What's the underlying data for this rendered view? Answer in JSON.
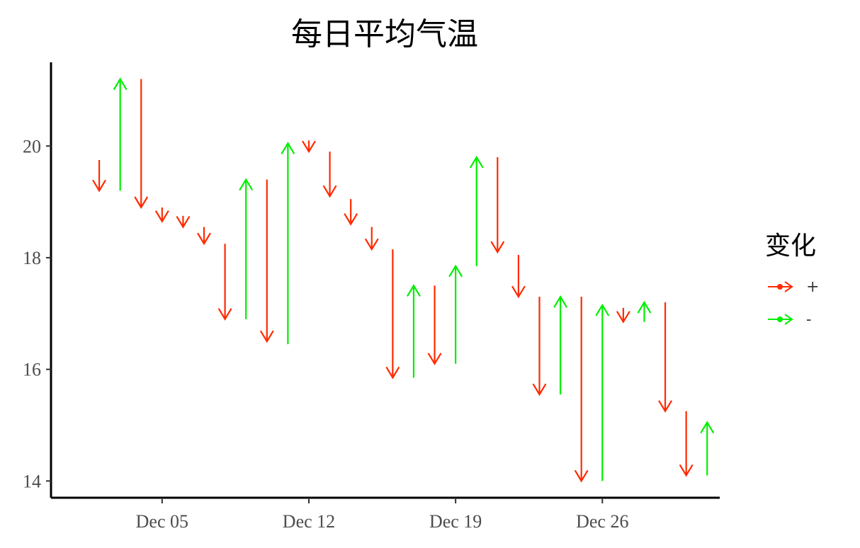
{
  "title": "每日平均气温",
  "chart_data": {
    "type": "segment",
    "title": "每日平均气温",
    "xlabel": "",
    "ylabel": "",
    "x_ticks": [
      {
        "day": 5,
        "label": "Dec 05"
      },
      {
        "day": 12,
        "label": "Dec 12"
      },
      {
        "day": 19,
        "label": "Dec 19"
      },
      {
        "day": 26,
        "label": "Dec 26"
      }
    ],
    "y_ticks": [
      14,
      16,
      18,
      20
    ],
    "xlim": [
      -0.3,
      31.6
    ],
    "ylim": [
      13.7,
      21.5
    ],
    "legend": {
      "title": "变化",
      "position": "right",
      "entries": [
        {
          "label": "+",
          "color": "#ff2a00"
        },
        {
          "label": "-",
          "color": "#00ee00"
        }
      ]
    },
    "colors": {
      "+": "#ff2a00",
      "-": "#00ee00"
    },
    "segments": [
      {
        "day": 2,
        "from": 19.75,
        "to": 19.2,
        "change": "+"
      },
      {
        "day": 3,
        "from": 19.2,
        "to": 21.2,
        "change": "-"
      },
      {
        "day": 4,
        "from": 21.2,
        "to": 18.9,
        "change": "+"
      },
      {
        "day": 5,
        "from": 18.9,
        "to": 18.65,
        "change": "+"
      },
      {
        "day": 6,
        "from": 18.75,
        "to": 18.55,
        "change": "+"
      },
      {
        "day": 7,
        "from": 18.55,
        "to": 18.25,
        "change": "+"
      },
      {
        "day": 8,
        "from": 18.25,
        "to": 16.9,
        "change": "+"
      },
      {
        "day": 9,
        "from": 16.9,
        "to": 19.4,
        "change": "-"
      },
      {
        "day": 10,
        "from": 19.4,
        "to": 16.5,
        "change": "+"
      },
      {
        "day": 11,
        "from": 16.45,
        "to": 20.05,
        "change": "-"
      },
      {
        "day": 12,
        "from": 20.1,
        "to": 19.9,
        "change": "+"
      },
      {
        "day": 13,
        "from": 19.9,
        "to": 19.1,
        "change": "+"
      },
      {
        "day": 14,
        "from": 19.05,
        "to": 18.6,
        "change": "+"
      },
      {
        "day": 15,
        "from": 18.55,
        "to": 18.15,
        "change": "+"
      },
      {
        "day": 16,
        "from": 18.15,
        "to": 15.85,
        "change": "+"
      },
      {
        "day": 17,
        "from": 15.85,
        "to": 17.5,
        "change": "-"
      },
      {
        "day": 18,
        "from": 17.5,
        "to": 16.1,
        "change": "+"
      },
      {
        "day": 19,
        "from": 16.1,
        "to": 17.85,
        "change": "-"
      },
      {
        "day": 20,
        "from": 17.85,
        "to": 19.8,
        "change": "-"
      },
      {
        "day": 21,
        "from": 19.8,
        "to": 18.1,
        "change": "+"
      },
      {
        "day": 22,
        "from": 18.05,
        "to": 17.3,
        "change": "+"
      },
      {
        "day": 23,
        "from": 17.3,
        "to": 15.55,
        "change": "+"
      },
      {
        "day": 24,
        "from": 15.55,
        "to": 17.3,
        "change": "-"
      },
      {
        "day": 25,
        "from": 17.3,
        "to": 14.0,
        "change": "+"
      },
      {
        "day": 26,
        "from": 14.0,
        "to": 17.15,
        "change": "-"
      },
      {
        "day": 27,
        "from": 17.1,
        "to": 16.85,
        "change": "+"
      },
      {
        "day": 28,
        "from": 16.85,
        "to": 17.2,
        "change": "-"
      },
      {
        "day": 29,
        "from": 17.2,
        "to": 15.25,
        "change": "+"
      },
      {
        "day": 30,
        "from": 15.25,
        "to": 14.1,
        "change": "+"
      },
      {
        "day": 31,
        "from": 14.1,
        "to": 15.05,
        "change": "-"
      }
    ]
  }
}
